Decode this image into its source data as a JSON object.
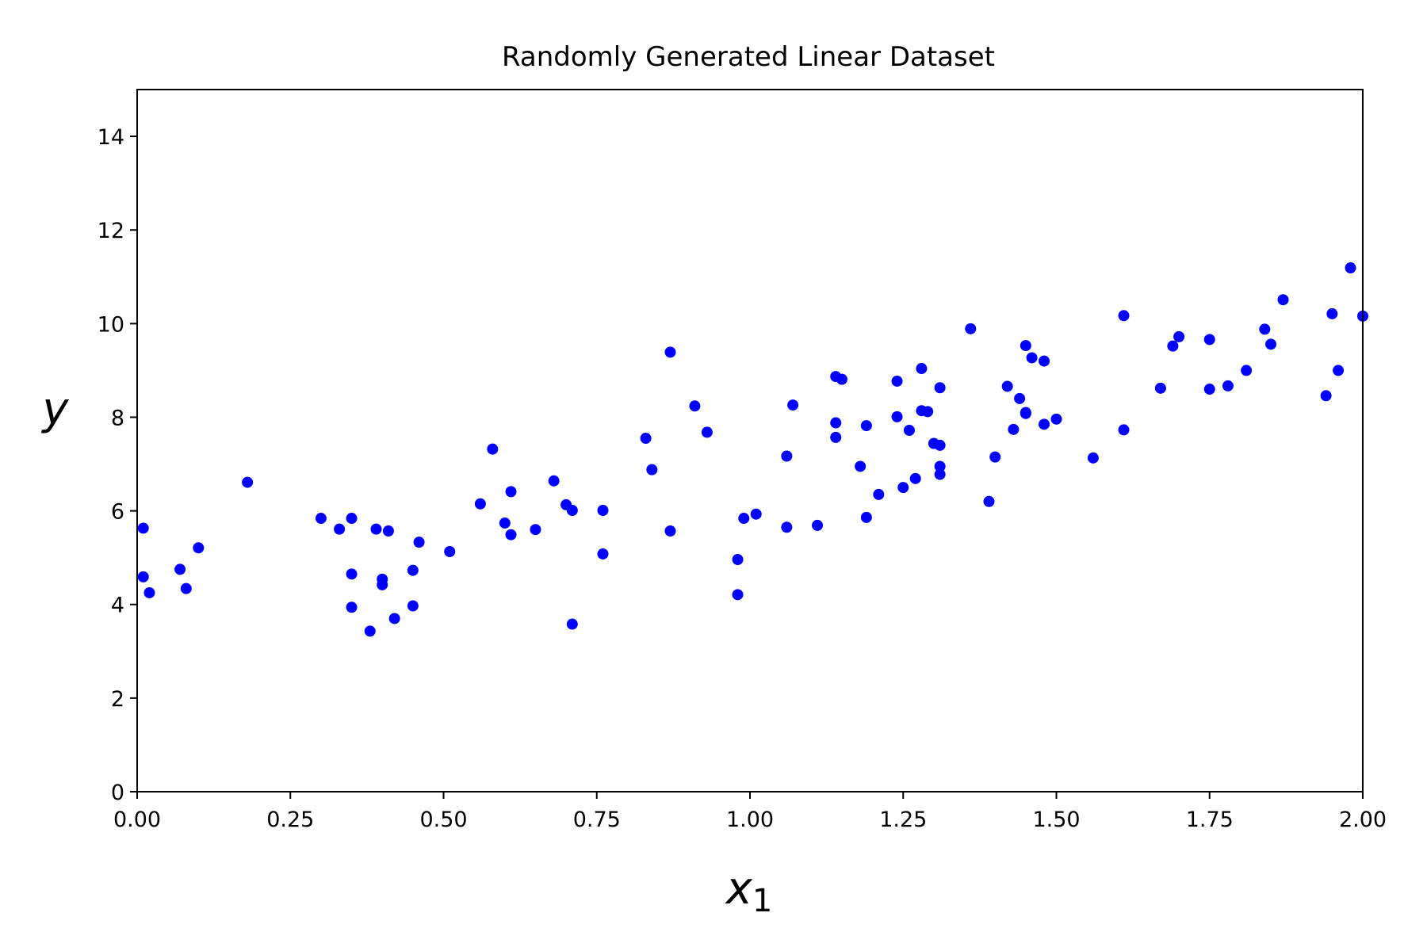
{
  "chart_data": {
    "type": "scatter",
    "title": "Randomly Generated Linear Dataset",
    "xlabel": "x",
    "xlabel_subscript": "1",
    "ylabel": "y",
    "xlim": [
      0,
      2
    ],
    "ylim": [
      0,
      15
    ],
    "grid": false,
    "marker_color": "#0000ff",
    "x_ticks": [
      0,
      0.25,
      0.5,
      0.75,
      1.0,
      1.25,
      1.5,
      1.75,
      2.0
    ],
    "x_tick_labels": [
      "0.00",
      "0.25",
      "0.50",
      "0.75",
      "1.00",
      "1.25",
      "1.50",
      "1.75",
      "2.00"
    ],
    "y_ticks": [
      0,
      2,
      4,
      6,
      8,
      10,
      12,
      14
    ],
    "y_tick_labels": [
      "0",
      "2",
      "4",
      "6",
      "8",
      "10",
      "12",
      "14"
    ],
    "points": [
      [
        0.01,
        5.63
      ],
      [
        0.01,
        4.59
      ],
      [
        0.02,
        4.25
      ],
      [
        0.07,
        4.75
      ],
      [
        0.08,
        4.34
      ],
      [
        0.1,
        5.21
      ],
      [
        0.18,
        6.61
      ],
      [
        0.3,
        5.84
      ],
      [
        0.33,
        5.61
      ],
      [
        0.35,
        4.65
      ],
      [
        0.35,
        3.94
      ],
      [
        0.35,
        5.84
      ],
      [
        0.38,
        3.43
      ],
      [
        0.39,
        5.61
      ],
      [
        0.4,
        4.42
      ],
      [
        0.4,
        4.54
      ],
      [
        0.41,
        5.57
      ],
      [
        0.42,
        3.7
      ],
      [
        0.45,
        4.73
      ],
      [
        0.45,
        3.97
      ],
      [
        0.46,
        5.33
      ],
      [
        0.51,
        5.13
      ],
      [
        0.56,
        6.15
      ],
      [
        0.58,
        7.32
      ],
      [
        0.6,
        5.74
      ],
      [
        0.61,
        5.49
      ],
      [
        0.61,
        6.41
      ],
      [
        0.65,
        5.6
      ],
      [
        0.68,
        6.64
      ],
      [
        0.7,
        6.13
      ],
      [
        0.71,
        6.01
      ],
      [
        0.71,
        3.58
      ],
      [
        0.76,
        6.01
      ],
      [
        0.76,
        5.08
      ],
      [
        0.83,
        7.55
      ],
      [
        0.84,
        6.88
      ],
      [
        0.87,
        5.57
      ],
      [
        0.87,
        9.39
      ],
      [
        0.91,
        8.24
      ],
      [
        0.93,
        7.68
      ],
      [
        0.98,
        4.96
      ],
      [
        0.98,
        4.21
      ],
      [
        0.99,
        5.84
      ],
      [
        1.01,
        5.93
      ],
      [
        1.06,
        7.17
      ],
      [
        1.06,
        5.65
      ],
      [
        1.07,
        8.26
      ],
      [
        1.11,
        5.69
      ],
      [
        1.14,
        8.87
      ],
      [
        1.14,
        7.88
      ],
      [
        1.14,
        7.57
      ],
      [
        1.15,
        8.81
      ],
      [
        1.18,
        6.95
      ],
      [
        1.19,
        5.86
      ],
      [
        1.19,
        7.82
      ],
      [
        1.21,
        6.35
      ],
      [
        1.24,
        8.01
      ],
      [
        1.24,
        8.77
      ],
      [
        1.25,
        6.5
      ],
      [
        1.26,
        7.72
      ],
      [
        1.27,
        6.69
      ],
      [
        1.28,
        8.14
      ],
      [
        1.28,
        9.04
      ],
      [
        1.29,
        8.12
      ],
      [
        1.3,
        7.44
      ],
      [
        1.31,
        7.4
      ],
      [
        1.31,
        8.63
      ],
      [
        1.31,
        6.95
      ],
      [
        1.31,
        6.78
      ],
      [
        1.36,
        9.89
      ],
      [
        1.39,
        6.2
      ],
      [
        1.4,
        7.15
      ],
      [
        1.42,
        8.66
      ],
      [
        1.43,
        7.74
      ],
      [
        1.44,
        8.4
      ],
      [
        1.45,
        9.53
      ],
      [
        1.45,
        8.1
      ],
      [
        1.45,
        8.08
      ],
      [
        1.46,
        9.27
      ],
      [
        1.48,
        9.2
      ],
      [
        1.48,
        7.85
      ],
      [
        1.5,
        7.96
      ],
      [
        1.56,
        7.13
      ],
      [
        1.61,
        10.17
      ],
      [
        1.61,
        7.73
      ],
      [
        1.67,
        8.62
      ],
      [
        1.69,
        9.52
      ],
      [
        1.7,
        9.72
      ],
      [
        1.75,
        9.66
      ],
      [
        1.75,
        8.6
      ],
      [
        1.78,
        8.67
      ],
      [
        1.81,
        9.0
      ],
      [
        1.84,
        9.88
      ],
      [
        1.85,
        9.56
      ],
      [
        1.87,
        10.51
      ],
      [
        1.94,
        8.46
      ],
      [
        1.95,
        10.21
      ],
      [
        1.96,
        9.0
      ],
      [
        1.98,
        11.19
      ],
      [
        2.0,
        10.16
      ]
    ]
  }
}
